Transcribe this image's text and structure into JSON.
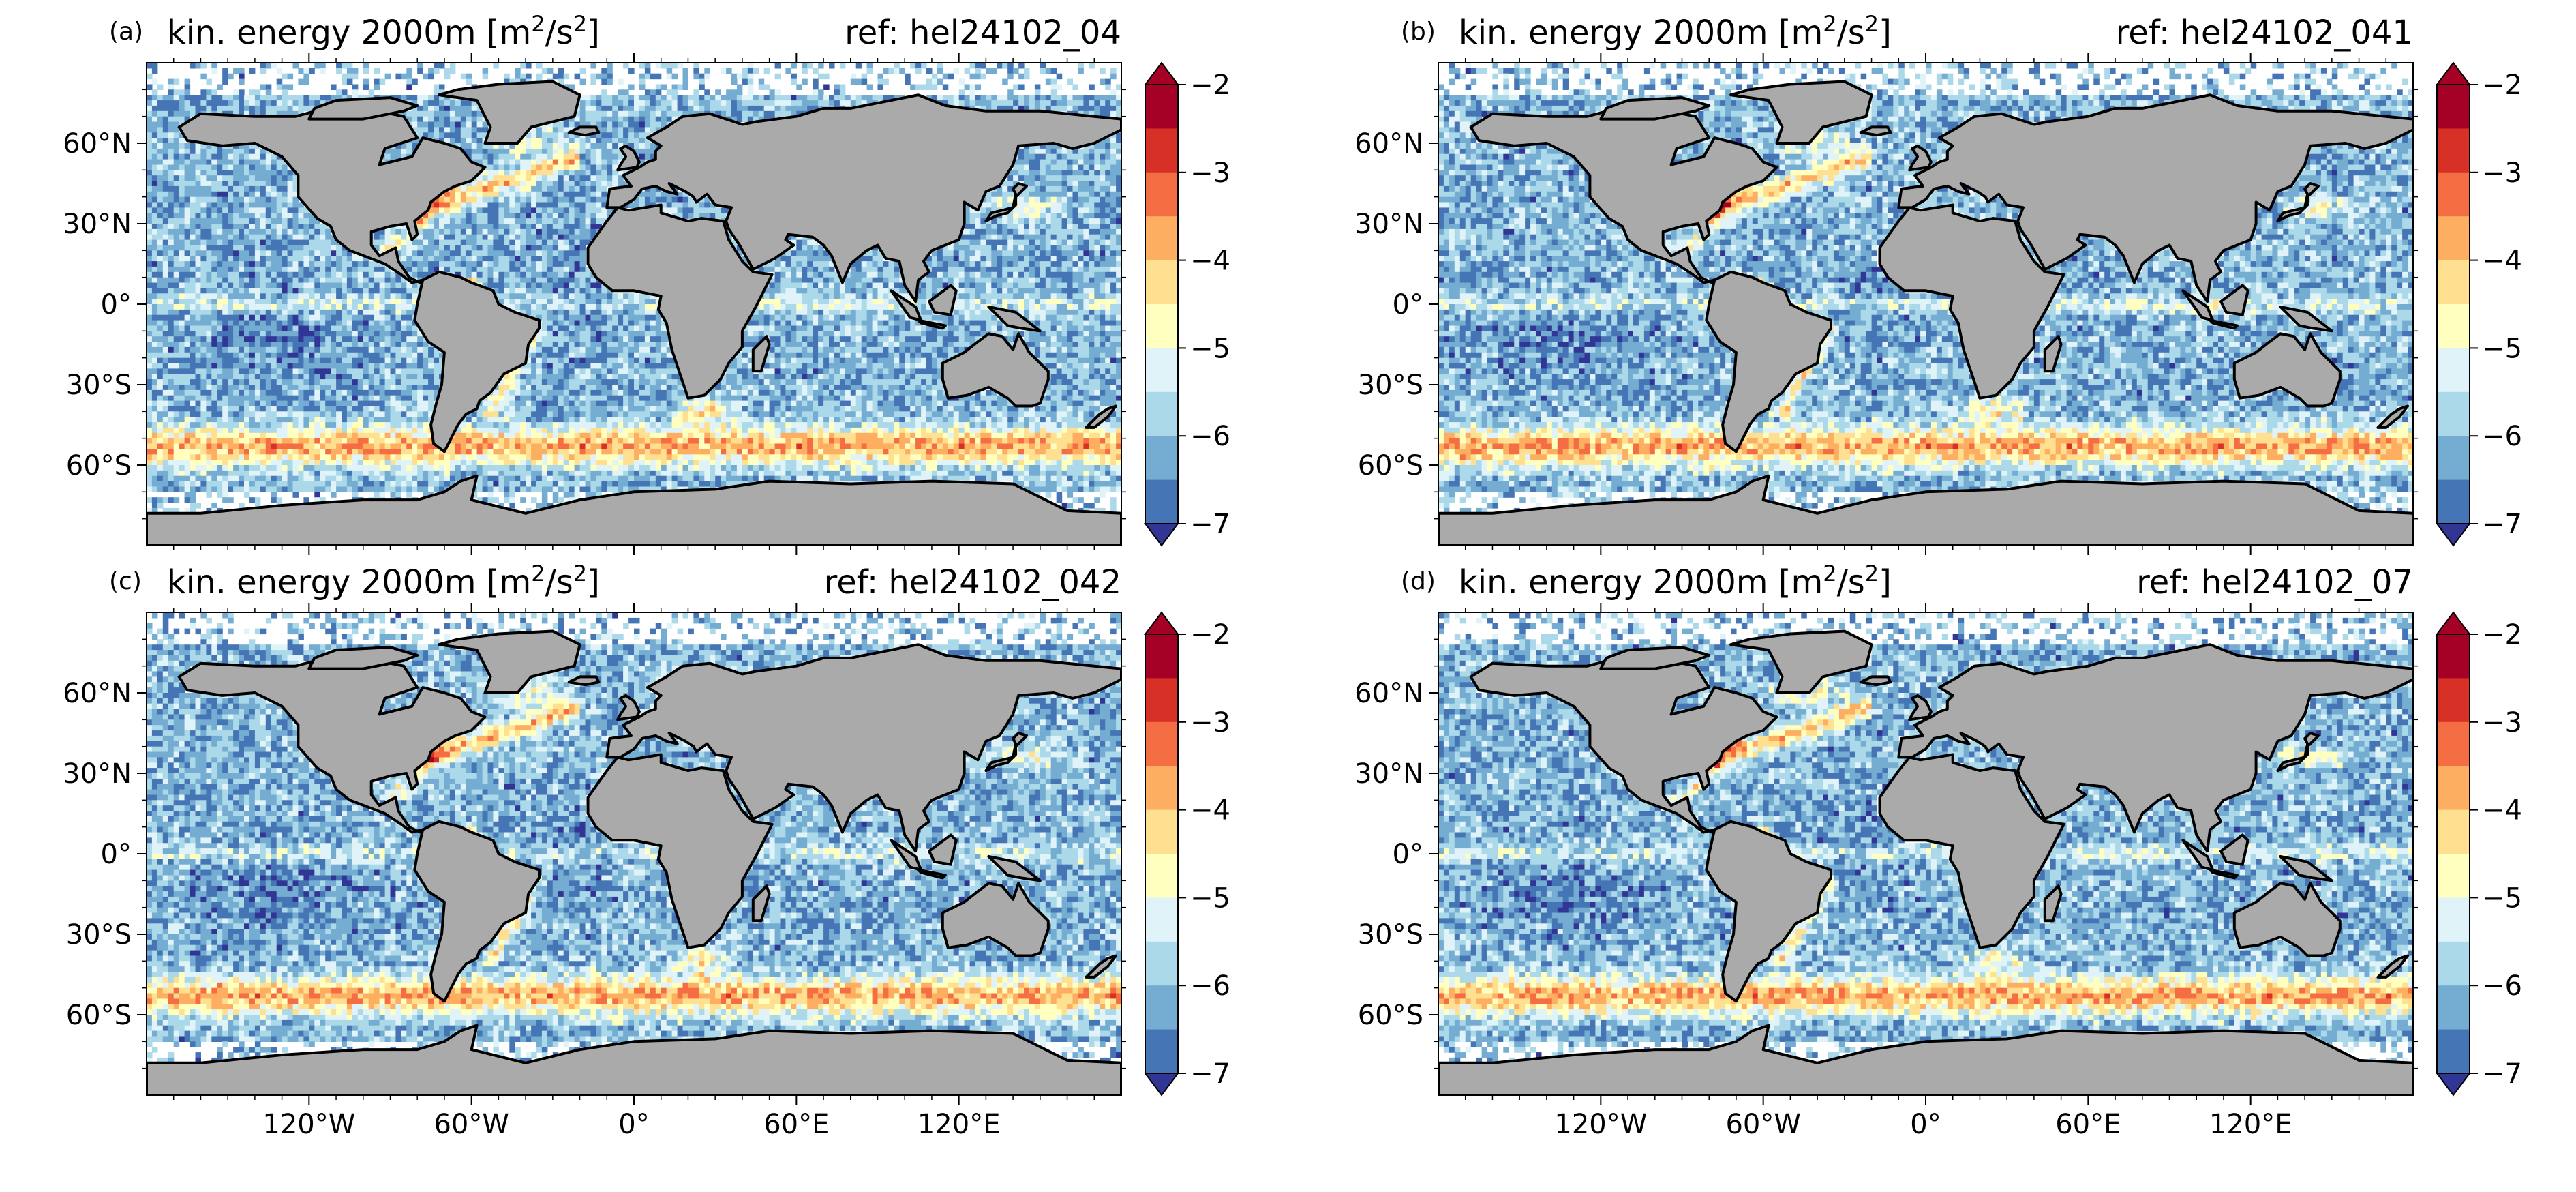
{
  "figure": {
    "title_prefix": "kin. energy 2000m [m",
    "title_sup1": "2",
    "title_mid": "/s",
    "title_sup2": "2",
    "title_suffix": "]"
  },
  "chart_data": [
    {
      "type": "heatmap",
      "panel_label": "(a)",
      "title": "kin. energy 2000m [m²/s²]",
      "ref_label": "ref: hel24102_04",
      "xlabel": "",
      "ylabel": "",
      "xlim": [
        -180,
        180
      ],
      "ylim": [
        -90,
        90
      ],
      "x_ticks": [
        "120°W",
        "60°W",
        "0°",
        "60°E",
        "120°E"
      ],
      "y_ticks": [
        "60°N",
        "30°N",
        "0°",
        "30°S",
        "60°S"
      ],
      "colorbar": {
        "ticks": [
          "-2",
          "-3",
          "-4",
          "-5",
          "-6",
          "-7"
        ],
        "range": [
          -7,
          -2
        ],
        "levels": 10,
        "extend": "both"
      }
    },
    {
      "type": "heatmap",
      "panel_label": "(b)",
      "title": "kin. energy 2000m [m²/s²]",
      "ref_label": "ref: hel24102_041",
      "xlabel": "",
      "ylabel": "",
      "xlim": [
        -180,
        180
      ],
      "ylim": [
        -90,
        90
      ],
      "x_ticks": [
        "120°W",
        "60°W",
        "0°",
        "60°E",
        "120°E"
      ],
      "y_ticks": [
        "60°N",
        "30°N",
        "0°",
        "30°S",
        "60°S"
      ],
      "colorbar": {
        "ticks": [
          "-2",
          "-3",
          "-4",
          "-5",
          "-6",
          "-7"
        ],
        "range": [
          -7,
          -2
        ],
        "levels": 10,
        "extend": "both"
      }
    },
    {
      "type": "heatmap",
      "panel_label": "(c)",
      "title": "kin. energy 2000m [m²/s²]",
      "ref_label": "ref: hel24102_042",
      "xlabel": "",
      "ylabel": "",
      "xlim": [
        -180,
        180
      ],
      "ylim": [
        -90,
        90
      ],
      "x_ticks": [
        "120°W",
        "60°W",
        "0°",
        "60°E",
        "120°E"
      ],
      "y_ticks": [
        "60°N",
        "30°N",
        "0°",
        "30°S",
        "60°S"
      ],
      "colorbar": {
        "ticks": [
          "-2",
          "-3",
          "-4",
          "-5",
          "-6",
          "-7"
        ],
        "range": [
          -7,
          -2
        ],
        "levels": 10,
        "extend": "both"
      }
    },
    {
      "type": "heatmap",
      "panel_label": "(d)",
      "title": "kin. energy 2000m [m²/s²]",
      "ref_label": "ref: hel24102_07",
      "xlabel": "",
      "ylabel": "",
      "xlim": [
        -180,
        180
      ],
      "ylim": [
        -90,
        90
      ],
      "x_ticks": [
        "120°W",
        "60°W",
        "0°",
        "60°E",
        "120°E"
      ],
      "y_ticks": [
        "60°N",
        "30°N",
        "0°",
        "30°S",
        "60°S"
      ],
      "colorbar": {
        "ticks": [
          "-2",
          "-3",
          "-4",
          "-5",
          "-6",
          "-7"
        ],
        "range": [
          -7,
          -2
        ],
        "levels": 10,
        "extend": "both"
      }
    }
  ],
  "colors": {
    "land": "#aaaaaa",
    "coast": "#000000",
    "ice": "#ffffff",
    "colormap": [
      "#313695",
      "#4575b4",
      "#74add1",
      "#abd9e9",
      "#e0f3f8",
      "#ffffbf",
      "#fee090",
      "#fdae61",
      "#f46d43",
      "#d73027",
      "#a50026"
    ]
  }
}
